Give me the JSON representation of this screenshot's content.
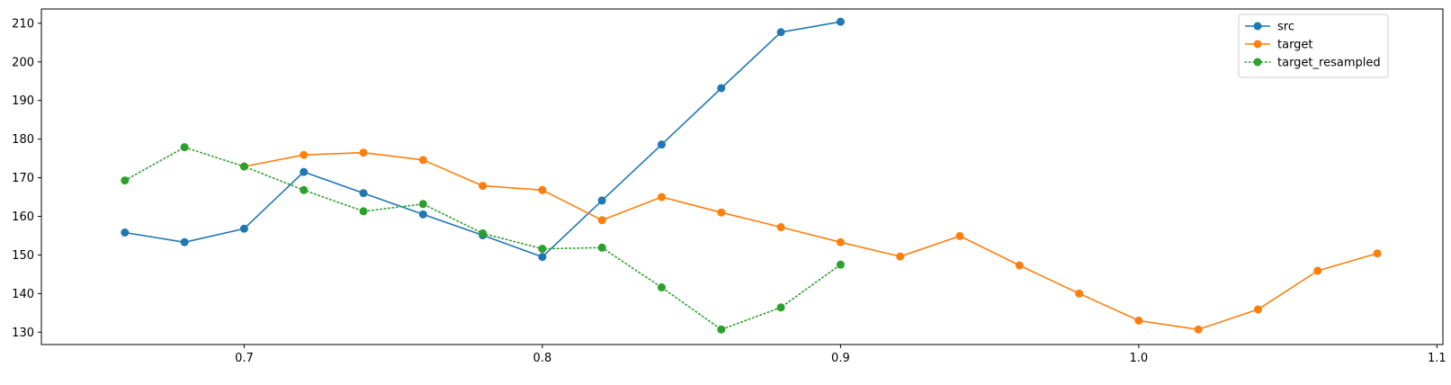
{
  "chart_data": {
    "type": "line",
    "title": "",
    "xlabel": "",
    "ylabel": "",
    "xlim": [
      0.632,
      1.102
    ],
    "ylim": [
      126.8,
      213.7
    ],
    "xticks": [
      0.7,
      0.8,
      0.9,
      1.0,
      1.1
    ],
    "xtick_labels": [
      "0.7",
      "0.8",
      "0.9",
      "1.0",
      "1.1"
    ],
    "yticks": [
      130,
      140,
      150,
      160,
      170,
      180,
      190,
      200,
      210
    ],
    "ytick_labels": [
      "130",
      "140",
      "150",
      "160",
      "170",
      "180",
      "190",
      "200",
      "210"
    ],
    "grid": false,
    "legend_position": "top-right",
    "series": [
      {
        "name": "src",
        "color": "#1f77b4",
        "linestyle": "solid",
        "marker": "circle",
        "x": [
          0.66,
          0.68,
          0.7,
          0.72,
          0.74,
          0.76,
          0.78,
          0.8,
          0.82,
          0.84,
          0.86,
          0.88,
          0.9
        ],
        "y": [
          155.8,
          153.3,
          156.8,
          171.5,
          166.0,
          160.5,
          155.1,
          149.5,
          164.1,
          178.6,
          193.2,
          207.7,
          210.4
        ]
      },
      {
        "name": "target",
        "color": "#ff7f0e",
        "linestyle": "solid",
        "marker": "circle",
        "x": [
          0.7,
          0.72,
          0.74,
          0.76,
          0.78,
          0.8,
          0.82,
          0.84,
          0.86,
          0.88,
          0.9,
          0.92,
          0.94,
          0.96,
          0.98,
          1.0,
          1.02,
          1.04,
          1.06,
          1.08
        ],
        "y": [
          172.9,
          175.9,
          176.5,
          174.6,
          167.9,
          166.8,
          159.0,
          165.0,
          161.0,
          157.2,
          153.3,
          149.6,
          154.9,
          147.3,
          140.0,
          133.0,
          130.7,
          135.9,
          145.9,
          150.4
        ]
      },
      {
        "name": "target_resampled",
        "color": "#2ca02c",
        "linestyle": "dotted",
        "marker": "circle",
        "x": [
          0.66,
          0.68,
          0.7,
          0.72,
          0.74,
          0.76,
          0.78,
          0.8,
          0.82,
          0.84,
          0.86,
          0.88,
          0.9
        ],
        "y": [
          169.3,
          177.9,
          172.9,
          166.8,
          161.3,
          163.2,
          155.6,
          151.6,
          151.9,
          141.6,
          130.7,
          136.4,
          147.5
        ]
      }
    ]
  }
}
